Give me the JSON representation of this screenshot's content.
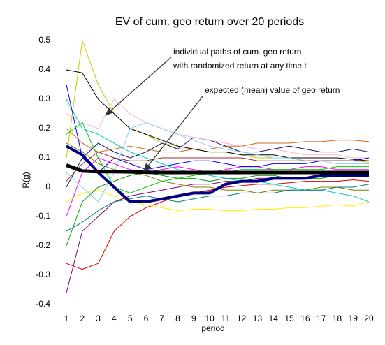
{
  "chart_data": {
    "type": "line",
    "title": "EV of cum. geo return over 20 periods",
    "x_label": "period",
    "y_label": "R(g)",
    "annotations": [
      "individual paths of cum. geo return",
      "with randomized return at any time t",
      "expected (mean) value of geo return"
    ],
    "x": [
      1,
      2,
      3,
      4,
      5,
      6,
      7,
      8,
      9,
      10,
      11,
      12,
      13,
      14,
      15,
      16,
      17,
      18,
      19,
      20
    ],
    "xlim": [
      1,
      20
    ],
    "xticks": [
      1,
      2,
      3,
      4,
      5,
      6,
      7,
      8,
      9,
      10,
      11,
      12,
      13,
      14,
      15,
      16,
      17,
      18,
      19,
      20
    ],
    "ylim": [
      -0.4,
      0.5
    ],
    "yticks": [
      -0.4,
      -0.3,
      -0.2,
      -0.1,
      0,
      0.1,
      0.2,
      0.3,
      0.4,
      0.5
    ],
    "series": [
      {
        "color": "#dd0000",
        "line_width": 1,
        "values": [
          -0.26,
          -0.28,
          -0.26,
          -0.15,
          -0.1,
          -0.07,
          -0.05,
          -0.03,
          -0.02,
          -0.01,
          0,
          0.005,
          0.01,
          0.01,
          0.015,
          0.02,
          0.02,
          0.02,
          0.025,
          0.02
        ]
      },
      {
        "color": "#ffee00",
        "line_width": 1,
        "values": [
          -0.05,
          -0.02,
          -0.01,
          -0.03,
          -0.05,
          -0.06,
          -0.07,
          -0.08,
          -0.075,
          -0.075,
          -0.08,
          -0.08,
          -0.075,
          -0.075,
          -0.07,
          -0.07,
          -0.065,
          -0.06,
          -0.065,
          -0.05
        ]
      },
      {
        "color": "#d2691e",
        "line_width": 1,
        "values": [
          0.2,
          0.15,
          0.12,
          0.13,
          0.14,
          0.13,
          0.12,
          0.12,
          0.13,
          0.13,
          0.14,
          0.14,
          0.15,
          0.15,
          0.15,
          0.155,
          0.155,
          0.16,
          0.16,
          0.155
        ]
      },
      {
        "color": "#c8c800",
        "line_width": 1,
        "values": [
          0.1,
          0.5,
          0.35,
          0.25,
          0.2,
          0.18,
          0.15,
          0.14,
          0.13,
          0.12,
          0.12,
          0.11,
          0.1,
          0.1,
          0.1,
          0.09,
          0.09,
          0.09,
          0.09,
          0.085
        ]
      },
      {
        "color": "#000000",
        "line_width": 1,
        "values": [
          0.4,
          0.39,
          0.3,
          0.25,
          0.2,
          0.18,
          0.16,
          0.14,
          0.13,
          0.12,
          0.12,
          0.11,
          0.11,
          0.11,
          0.1,
          0.1,
          0.1,
          0.1,
          0.095,
          0.09
        ]
      },
      {
        "color": "#191970",
        "line_width": 1,
        "values": [
          0,
          0.1,
          0.15,
          0.12,
          0.1,
          0.12,
          0.15,
          0.13,
          0.17,
          0.16,
          0.14,
          0.12,
          0.12,
          0.13,
          0.14,
          0.13,
          0.12,
          0.12,
          0.13,
          0.12
        ]
      },
      {
        "color": "#ff00ff",
        "line_width": 1,
        "values": [
          -0.1,
          0.05,
          0.1,
          0.08,
          0.06,
          0.05,
          0.06,
          0.07,
          0.06,
          0.05,
          0.06,
          0.07,
          0.07,
          0.06,
          0.06,
          0.07,
          0.07,
          0.06,
          0.06,
          0.06
        ]
      },
      {
        "color": "#00a000",
        "line_width": 1,
        "values": [
          -0.2,
          -0.05,
          0,
          0.02,
          0.04,
          0.05,
          0.04,
          0.03,
          0.03,
          0.02,
          0.03,
          0.03,
          0.04,
          0.04,
          0.03,
          0.03,
          0.03,
          0.04,
          0.04,
          0.05
        ]
      },
      {
        "color": "#00cccc",
        "line_width": 1,
        "values": [
          0.3,
          0.2,
          0.18,
          0.15,
          0.12,
          0.1,
          0.08,
          0.06,
          0.05,
          0.04,
          0.03,
          0.02,
          0.02,
          0.01,
          0,
          -0.01,
          -0.01,
          -0.02,
          -0.03,
          -0.05
        ]
      },
      {
        "color": "#800080",
        "line_width": 1,
        "values": [
          -0.36,
          -0.15,
          -0.1,
          -0.05,
          -0.03,
          -0.02,
          -0.01,
          0,
          0.01,
          0.01,
          0.02,
          0.02,
          0.03,
          0.03,
          0.03,
          0.03,
          0.04,
          0.04,
          0.04,
          0.04
        ]
      },
      {
        "color": "#ffb6c1",
        "line_width": 1,
        "values": [
          0.25,
          0.22,
          0.2,
          0.3,
          0.25,
          0.22,
          0.2,
          0.18,
          0.17,
          0.16,
          0.15,
          0.14,
          0.13,
          0.13,
          0.12,
          0.11,
          0.11,
          0.11,
          0.1,
          0.1
        ]
      },
      {
        "color": "#87cefa",
        "line_width": 1,
        "values": [
          0.05,
          0,
          -0.05,
          0.05,
          0.2,
          0.22,
          0.2,
          0.18,
          0.16,
          0.14,
          0.13,
          0.12,
          0.11,
          0.1,
          0.1,
          0.09,
          0.09,
          0.08,
          0.08,
          0.08
        ]
      },
      {
        "color": "#808000",
        "line_width": 1,
        "values": [
          0.15,
          0.12,
          0.08,
          0.06,
          0.05,
          0.04,
          0.02,
          0.01,
          0,
          0,
          -0.01,
          -0.01,
          -0.02,
          -0.01,
          -0.01,
          -0.01,
          0,
          0,
          -0.01,
          -0.01
        ]
      },
      {
        "color": "#008080",
        "line_width": 1,
        "values": [
          -0.15,
          -0.12,
          -0.08,
          -0.05,
          -0.04,
          -0.03,
          -0.04,
          -0.05,
          -0.04,
          -0.03,
          -0.03,
          -0.02,
          -0.02,
          -0.02,
          -0.01,
          -0.01,
          -0.01,
          0,
          0,
          0.01
        ]
      },
      {
        "color": "#0000ff",
        "line_width": 1,
        "values": [
          0.35,
          0.1,
          0.05,
          0.1,
          0.08,
          0.06,
          0.07,
          0.08,
          0.09,
          0.09,
          0.08,
          0.07,
          0.07,
          0.08,
          0.08,
          0.08,
          0.09,
          0.09,
          0.09,
          0.1
        ]
      },
      {
        "color": "#a52a2a",
        "line_width": 1,
        "values": [
          0.02,
          0.08,
          0.12,
          0.1,
          0.09,
          0.09,
          0.1,
          0.1,
          0.1,
          0.1,
          0.1,
          0.1,
          0.09,
          0.09,
          0.09,
          0.09,
          0.09,
          0.09,
          0.09,
          0.09
        ]
      },
      {
        "color": "#00cc00",
        "line_width": 1,
        "values": [
          0.18,
          0.22,
          0.1,
          0,
          -0.02,
          0,
          0.02,
          0.03,
          0.04,
          0.05,
          0.05,
          0.06,
          0.06,
          0.06,
          0.06,
          0.06,
          0.06,
          0.07,
          0.07,
          0.07
        ]
      },
      {
        "color": "#000080",
        "line_width": 4,
        "values": [
          0.14,
          0.11,
          0.05,
          0,
          -0.05,
          -0.05,
          -0.04,
          -0.03,
          -0.02,
          -0.02,
          0.01,
          0.02,
          0.02,
          0.03,
          0.03,
          0.03,
          0.04,
          0.04,
          0.04,
          0.04
        ]
      },
      {
        "color": "#000000",
        "line_width": 5,
        "values": [
          0.075,
          0.055,
          0.053,
          0.053,
          0.052,
          0.051,
          0.05,
          0.05,
          0.05,
          0.05,
          0.05,
          0.05,
          0.05,
          0.05,
          0.05,
          0.05,
          0.05,
          0.05,
          0.05,
          0.05
        ]
      }
    ]
  }
}
